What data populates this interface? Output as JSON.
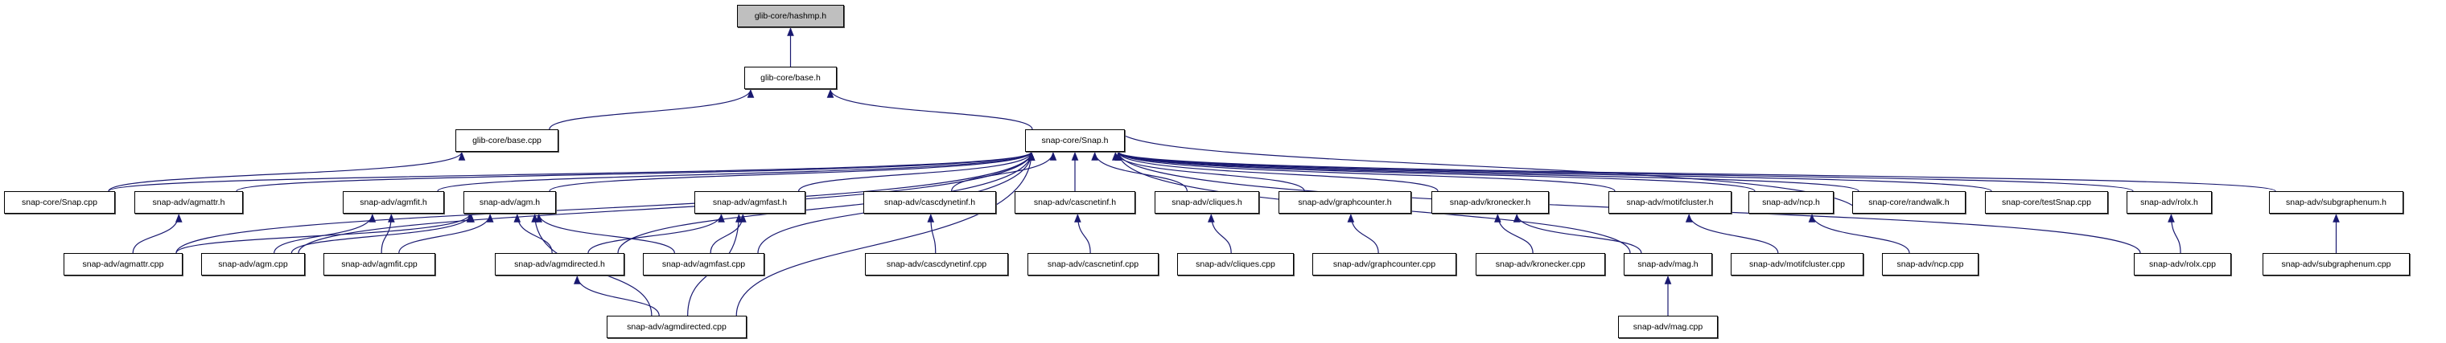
{
  "colors": {
    "edge": "#191970",
    "highlight_fill": "#bfbfbf",
    "node_fill": "#ffffff"
  },
  "nodes": [
    {
      "label": "glib-core/hashmp.h",
      "highlighted": true
    },
    {
      "label": "glib-core/base.h"
    },
    {
      "label": "glib-core/base.cpp"
    },
    {
      "label": "snap-core/Snap.h"
    },
    {
      "label": "snap-core/Snap.cpp"
    },
    {
      "label": "snap-adv/agmattr.h"
    },
    {
      "label": "snap-adv/agmfit.h"
    },
    {
      "label": "snap-adv/agm.h"
    },
    {
      "label": "snap-adv/agmfast.h"
    },
    {
      "label": "snap-adv/cascdynetinf.h"
    },
    {
      "label": "snap-adv/cascnetinf.h"
    },
    {
      "label": "snap-adv/cliques.h"
    },
    {
      "label": "snap-adv/graphcounter.h"
    },
    {
      "label": "snap-adv/kronecker.h"
    },
    {
      "label": "snap-adv/motifcluster.h"
    },
    {
      "label": "snap-adv/ncp.h"
    },
    {
      "label": "snap-core/randwalk.h"
    },
    {
      "label": "snap-core/testSnap.cpp"
    },
    {
      "label": "snap-adv/rolx.h"
    },
    {
      "label": "snap-adv/subgraphenum.h"
    },
    {
      "label": "snap-adv/agmattr.cpp"
    },
    {
      "label": "snap-adv/agm.cpp"
    },
    {
      "label": "snap-adv/agmfit.cpp"
    },
    {
      "label": "snap-adv/agmdirected.h"
    },
    {
      "label": "snap-adv/agmfast.cpp"
    },
    {
      "label": "snap-adv/cascdynetinf.cpp"
    },
    {
      "label": "snap-adv/cascnetinf.cpp"
    },
    {
      "label": "snap-adv/cliques.cpp"
    },
    {
      "label": "snap-adv/graphcounter.cpp"
    },
    {
      "label": "snap-adv/kronecker.cpp"
    },
    {
      "label": "snap-adv/mag.h"
    },
    {
      "label": "snap-adv/motifcluster.cpp"
    },
    {
      "label": "snap-adv/ncp.cpp"
    },
    {
      "label": "snap-adv/rolx.cpp"
    },
    {
      "label": "snap-adv/subgraphenum.cpp"
    },
    {
      "label": "snap-adv/agmdirected.cpp"
    },
    {
      "label": "snap-adv/mag.cpp"
    }
  ],
  "edges": [
    [
      1,
      0
    ],
    [
      2,
      1
    ],
    [
      3,
      1
    ],
    [
      4,
      2
    ],
    [
      4,
      3
    ],
    [
      5,
      3
    ],
    [
      6,
      3
    ],
    [
      7,
      3
    ],
    [
      8,
      3
    ],
    [
      9,
      3
    ],
    [
      10,
      3
    ],
    [
      11,
      3
    ],
    [
      12,
      3
    ],
    [
      13,
      3
    ],
    [
      14,
      3
    ],
    [
      15,
      3
    ],
    [
      16,
      3
    ],
    [
      17,
      3
    ],
    [
      18,
      3
    ],
    [
      19,
      3
    ],
    [
      20,
      3
    ],
    [
      21,
      3
    ],
    [
      23,
      3
    ],
    [
      24,
      3
    ],
    [
      35,
      3
    ],
    [
      30,
      3
    ],
    [
      33,
      3
    ],
    [
      3,
      16
    ],
    [
      20,
      5
    ],
    [
      20,
      7
    ],
    [
      21,
      6
    ],
    [
      21,
      7
    ],
    [
      22,
      6
    ],
    [
      22,
      7
    ],
    [
      23,
      7
    ],
    [
      23,
      8
    ],
    [
      24,
      7
    ],
    [
      24,
      8
    ],
    [
      35,
      7
    ],
    [
      35,
      23
    ],
    [
      35,
      8
    ],
    [
      25,
      9
    ],
    [
      26,
      10
    ],
    [
      27,
      11
    ],
    [
      28,
      12
    ],
    [
      29,
      13
    ],
    [
      30,
      13
    ],
    [
      36,
      30
    ],
    [
      31,
      14
    ],
    [
      32,
      15
    ],
    [
      33,
      18
    ],
    [
      34,
      19
    ]
  ]
}
